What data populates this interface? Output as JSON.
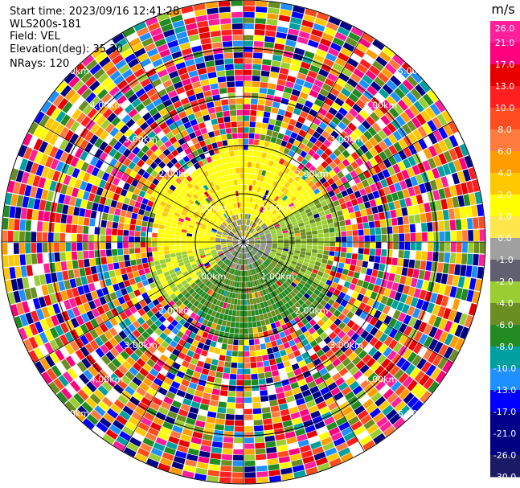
{
  "info": {
    "start_time": "Start time: 2023/09/16 12:41:28",
    "instrument": "WLS200s-181",
    "field": "Field: VEL",
    "elevation": "Elevation(deg): 35.30",
    "nrays": "NRays: 120"
  },
  "colorbar": {
    "unit": "m/s",
    "ticks": [
      "26.0",
      "21.0",
      "17.0",
      "13.0",
      "10.0",
      "8.0",
      "6.0",
      "4.0",
      "2.0",
      "1.0",
      "0.0",
      "-1.0",
      "-2.0",
      "-4.0",
      "-6.0",
      "-8.0",
      "-10.0",
      "-13.0",
      "-17.0",
      "-21.0",
      "-26.0",
      "-30.0"
    ],
    "colors": [
      "#ff1f9b",
      "#ff007f",
      "#e60000",
      "#ff1f1f",
      "#ff4d1f",
      "#ff7a3d",
      "#ff9c00",
      "#ffc800",
      "#ffff00",
      "#ffe64d",
      "#a0a0a0",
      "#606070",
      "#9acd32",
      "#6b8e23",
      "#228b22",
      "#00a0a0",
      "#1e90ff",
      "#0000ff",
      "#00008b",
      "#000080",
      "#1a1a66"
    ]
  },
  "rings": [
    {
      "label": "1.00km"
    },
    {
      "label": "2.00km"
    },
    {
      "label": "3.00km"
    },
    {
      "label": "4.00km"
    },
    {
      "label": "5.00km"
    }
  ]
}
